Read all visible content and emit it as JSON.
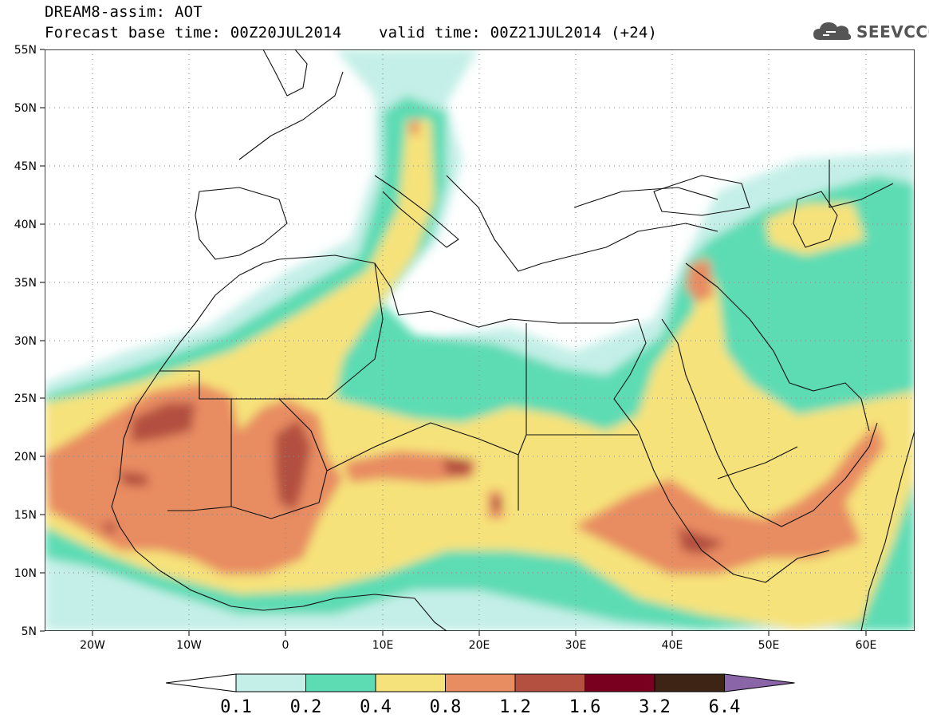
{
  "header": {
    "line1": "DREAM8-assim: AOT",
    "line2": "Forecast base time: 00Z20JUL2014    valid time: 00Z21JUL2014 (+24)"
  },
  "logo": {
    "text": "SEEVCCC",
    "icon": "cloud-icon",
    "color": "#555555"
  },
  "map": {
    "lat_labels": [
      "55N",
      "50N",
      "45N",
      "40N",
      "35N",
      "30N",
      "25N",
      "20N",
      "15N",
      "10N",
      "5N"
    ],
    "lat_values": [
      55,
      50,
      45,
      40,
      35,
      30,
      25,
      20,
      15,
      10,
      5
    ],
    "lon_labels": [
      "20W",
      "10W",
      "0",
      "10E",
      "20E",
      "30E",
      "40E",
      "50E",
      "60E"
    ],
    "lon_values": [
      -20,
      -10,
      0,
      10,
      20,
      30,
      40,
      50,
      60
    ],
    "lon_range": [
      -25,
      65
    ],
    "lat_range": [
      5,
      55
    ],
    "grid": "dotted"
  },
  "colorbar": {
    "levels": [
      "0.1",
      "0.2",
      "0.4",
      "0.8",
      "1.2",
      "1.6",
      "3.2",
      "6.4"
    ],
    "colors": [
      "#c4efe8",
      "#5ddcb4",
      "#f6e27a",
      "#e88c62",
      "#b3503f",
      "#7a0020",
      "#3d2414",
      "#8a66a8"
    ]
  }
}
